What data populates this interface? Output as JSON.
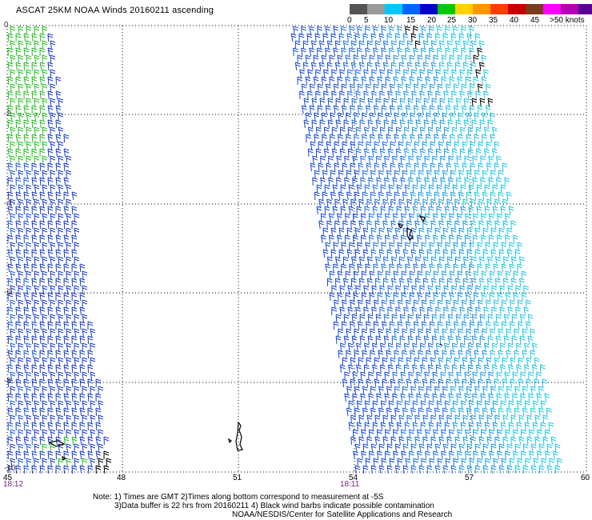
{
  "title": "ASCAT 25KM NOAA Winds 20160211 ascending",
  "legend": {
    "colors": [
      "#555555",
      "#9a9a9a",
      "#00c8ff",
      "#0064ff",
      "#0000c8",
      "#00c800",
      "#ffd200",
      "#ff9600",
      "#ff3c00",
      "#c80000",
      "#7a3c1e",
      "#ff00ff",
      "#b400b4",
      "#5a0096"
    ],
    "labels": [
      "0",
      "5",
      "10",
      "15",
      "20",
      "25",
      "30",
      "35",
      "40",
      "45",
      ">50 knots"
    ]
  },
  "lat_labels": [
    "0",
    "-2",
    "-4",
    "-6",
    "-8",
    "-10"
  ],
  "lon_labels": [
    "45",
    "48",
    "51",
    "54",
    "57",
    "60"
  ],
  "time_labels": [
    "18:12",
    "18:11"
  ],
  "notes": [
    "Note: 1) Times are GMT 2)Times along bottom correspond to measurement at -5S",
    "3)Data buffer is 22 hrs from 20160211 4) Black wind barbs indicate possible contamination",
    "NOAA/NESDIS/Center for Satellite Applications and Research"
  ]
}
